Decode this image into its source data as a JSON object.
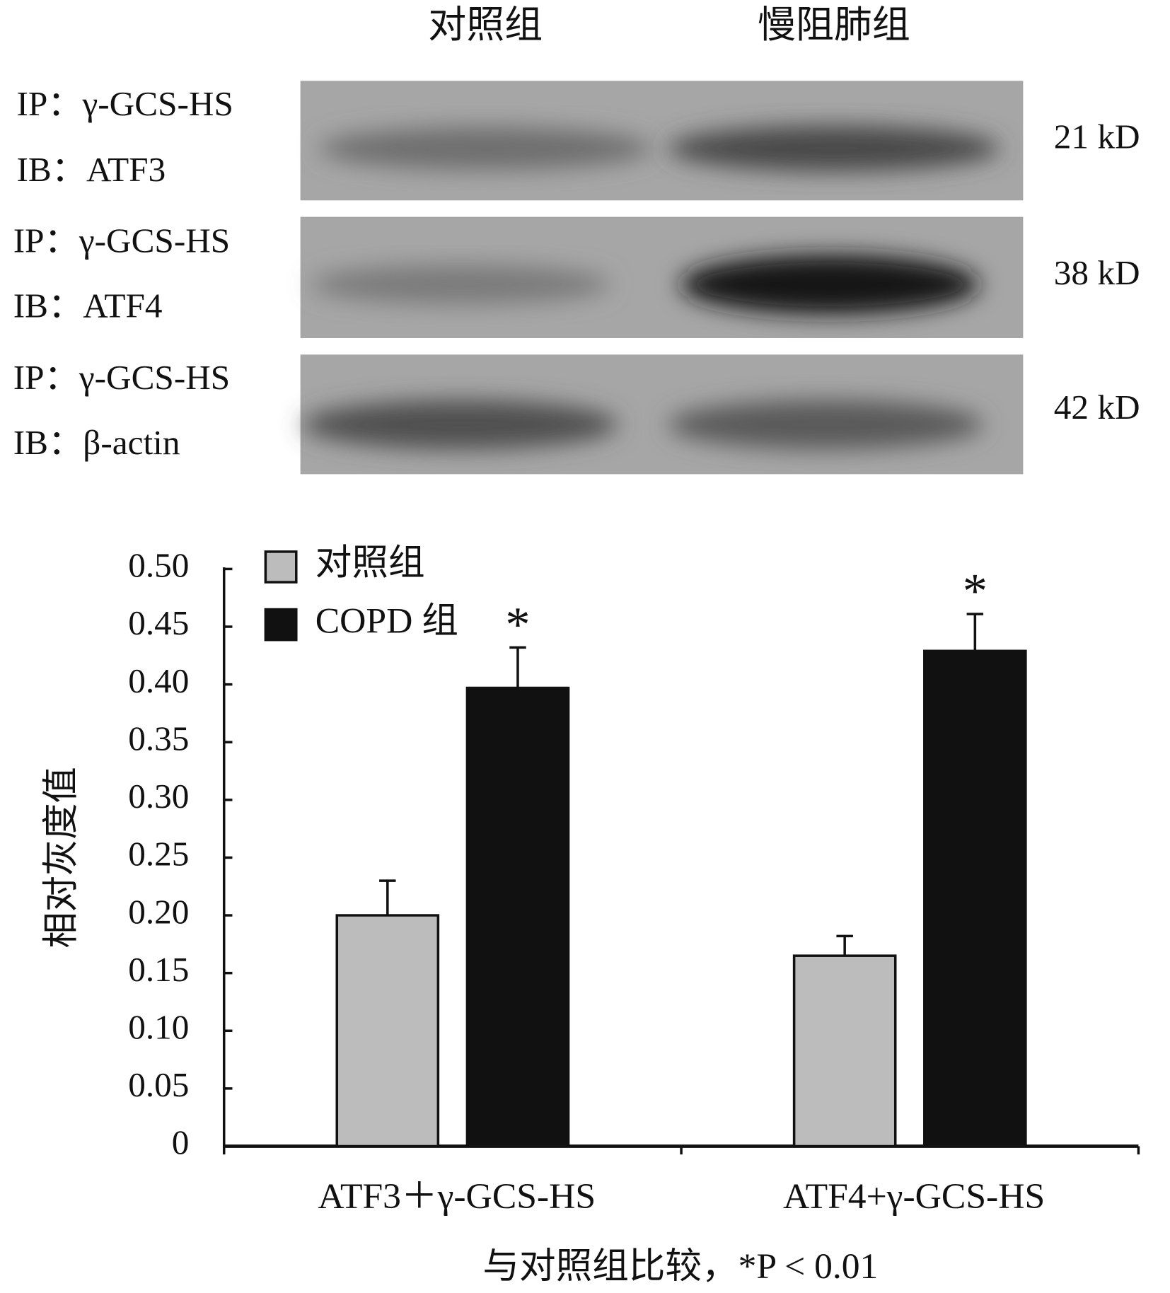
{
  "blot": {
    "columns": [
      "对照组",
      "慢阻肺组"
    ],
    "rows": [
      {
        "ip": "IP：γ-GCS-HS",
        "ib": "IB：ATF3",
        "size": "21 kD"
      },
      {
        "ip": "IP：γ-GCS-HS",
        "ib": "IB：ATF4",
        "size": "38 kD"
      },
      {
        "ip": "IP：γ-GCS-HS",
        "ib": "IB：β-actin",
        "size": "42 kD"
      }
    ]
  },
  "chart_data": {
    "type": "bar",
    "ylabel": "相对灰度值",
    "note": "与对照组比较，*P < 0.01",
    "categories": [
      "ATF3＋γ-GCS-HS",
      "ATF4+γ-GCS-HS"
    ],
    "series": [
      {
        "name": "对照组",
        "color": "#bcbcbc",
        "values": [
          0.2,
          0.165
        ],
        "errors": [
          0.03,
          0.017
        ]
      },
      {
        "name": "COPD 组",
        "color": "#111111",
        "values": [
          0.397,
          0.429
        ],
        "errors": [
          0.035,
          0.032
        ],
        "significance": [
          "*",
          "*"
        ]
      }
    ],
    "ylim": [
      0,
      0.5
    ],
    "yticks": [
      0,
      0.05,
      {
        "value": 0.1,
        "label": "0.10"
      },
      0.15,
      {
        "value": 0.2,
        "label": "0.20"
      },
      0.25,
      {
        "value": 0.3,
        "label": "0.30"
      },
      0.35,
      {
        "value": 0.4,
        "label": "0.40"
      },
      0.45,
      {
        "value": 0.5,
        "label": "0.50"
      }
    ],
    "legend": "upper left"
  }
}
